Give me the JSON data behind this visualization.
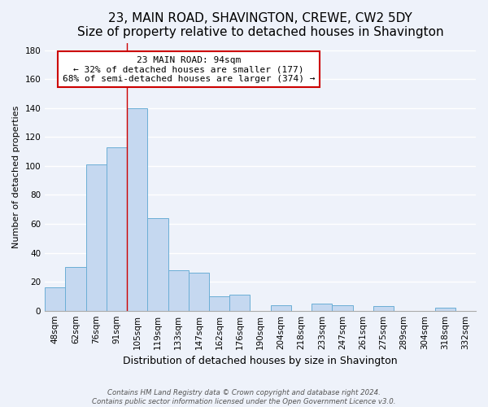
{
  "title": "23, MAIN ROAD, SHAVINGTON, CREWE, CW2 5DY",
  "subtitle": "Size of property relative to detached houses in Shavington",
  "xlabel": "Distribution of detached houses by size in Shavington",
  "ylabel": "Number of detached properties",
  "bar_labels": [
    "48sqm",
    "62sqm",
    "76sqm",
    "91sqm",
    "105sqm",
    "119sqm",
    "133sqm",
    "147sqm",
    "162sqm",
    "176sqm",
    "190sqm",
    "204sqm",
    "218sqm",
    "233sqm",
    "247sqm",
    "261sqm",
    "275sqm",
    "289sqm",
    "304sqm",
    "318sqm",
    "332sqm"
  ],
  "bar_values": [
    16,
    30,
    101,
    113,
    140,
    64,
    28,
    26,
    10,
    11,
    0,
    4,
    0,
    5,
    4,
    0,
    3,
    0,
    0,
    2,
    0
  ],
  "bar_color": "#c5d8f0",
  "bar_edge_color": "#6baed6",
  "vline_x": 3.5,
  "vline_color": "#cc0000",
  "annotation_line1": "23 MAIN ROAD: 94sqm",
  "annotation_line2": "← 32% of detached houses are smaller (177)",
  "annotation_line3": "68% of semi-detached houses are larger (374) →",
  "annotation_box_color": "#ffffff",
  "annotation_box_edge": "#cc0000",
  "ylim": [
    0,
    185
  ],
  "yticks": [
    0,
    20,
    40,
    60,
    80,
    100,
    120,
    140,
    160,
    180
  ],
  "footer_line1": "Contains HM Land Registry data © Crown copyright and database right 2024.",
  "footer_line2": "Contains public sector information licensed under the Open Government Licence v3.0.",
  "background_color": "#eef2fa",
  "title_fontsize": 11,
  "subtitle_fontsize": 9.5,
  "annotation_fontsize": 8,
  "ylabel_fontsize": 8,
  "xlabel_fontsize": 9,
  "tick_fontsize": 7.5
}
